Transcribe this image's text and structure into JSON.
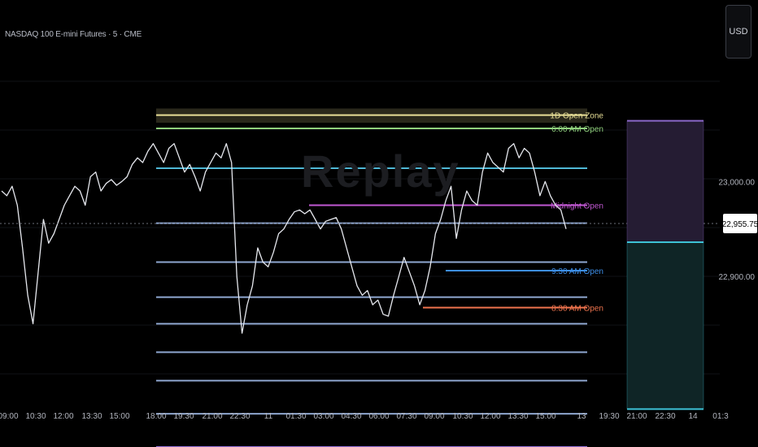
{
  "header": {
    "symbol": "NASDAQ 100 E-mini Futures · 5 · CME",
    "currency_button": "USD"
  },
  "watermark": "Replay",
  "chart_data": {
    "type": "line",
    "title": "",
    "x_tick_labels": [
      "09:00",
      "10:30",
      "12:00",
      "13:30",
      "15:00",
      "18:00",
      "19:30",
      "21:00",
      "22:30",
      "11",
      "01:30",
      "03:00",
      "04:30",
      "06:00",
      "07:30",
      "09:00",
      "10:30",
      "12:00",
      "13:30",
      "15:00",
      "13",
      "19:30",
      "21:00",
      "22:30",
      "14",
      "01:3"
    ],
    "y_tick_labels": [
      "23,000.00",
      "22,900.00"
    ],
    "ylim": [
      22780,
      23140
    ],
    "current_price": {
      "label": "22,955.75",
      "value": 22955.75
    },
    "series": [
      {
        "values": [
          22990,
          22985,
          22995,
          22975,
          22930,
          22880,
          22850,
          22905,
          22960,
          22935,
          22945,
          22960,
          22975,
          22985,
          22995,
          22990,
          22975,
          23005,
          23010,
          22990,
          22998,
          23002,
          22996,
          23000,
          23005,
          23018,
          23025,
          23020,
          23032,
          23040,
          23030,
          23020,
          23035,
          23040,
          23025,
          23010,
          23018,
          23005,
          22990,
          23010,
          23020,
          23030,
          23025,
          23040,
          23020,
          22900,
          22840,
          22870,
          22890,
          22930,
          22915,
          22910,
          22925,
          22945,
          22950,
          22960,
          22968,
          22970,
          22966,
          22970,
          22960,
          22950,
          22958,
          22960,
          22962,
          22950,
          22930,
          22910,
          22890,
          22880,
          22885,
          22870,
          22875,
          22860,
          22858,
          22880,
          22900,
          22920,
          22905,
          22890,
          22870,
          22885,
          22910,
          22945,
          22960,
          22980,
          22995,
          22940,
          22970,
          22990,
          22980,
          22975,
          23010,
          23030,
          23020,
          23015,
          23010,
          23035,
          23040,
          23025,
          23035,
          23030,
          23010,
          22985,
          23000,
          22985,
          22975,
          22970,
          22950
        ]
      }
    ],
    "levels": [
      {
        "name": "1D Open Zone",
        "value": 23070,
        "color": "#e8df97",
        "band": [
          23062,
          23077
        ],
        "label": "1D Open Zone"
      },
      {
        "name": "6:00 AM Open",
        "value": 23056,
        "color": "#8fd07c",
        "label": "6:00 AM Open"
      },
      {
        "name": "Midnight Open",
        "value": 22975,
        "color": "#c158d2",
        "label": "Midnight Open"
      },
      {
        "name": "9:30 AM Open",
        "value": 22906,
        "color": "#3d8ee8",
        "label": "9:30 AM Open"
      },
      {
        "name": "8:30 AM Open",
        "value": 22867,
        "color": "#f0744e",
        "label": "8:30 AM Open"
      }
    ],
    "grid_levels": [
      23014,
      22956,
      22915,
      22878,
      22850,
      22820,
      22790,
      22755,
      22720
    ],
    "zones": [
      {
        "name": "premium",
        "top": 23064,
        "bottom": 22936,
        "fill": "#251c33",
        "border": "#8a67c8"
      },
      {
        "name": "discount",
        "top": 22936,
        "bottom": 22760,
        "fill": "#0f2526",
        "border": "#3ec2d6"
      }
    ]
  }
}
